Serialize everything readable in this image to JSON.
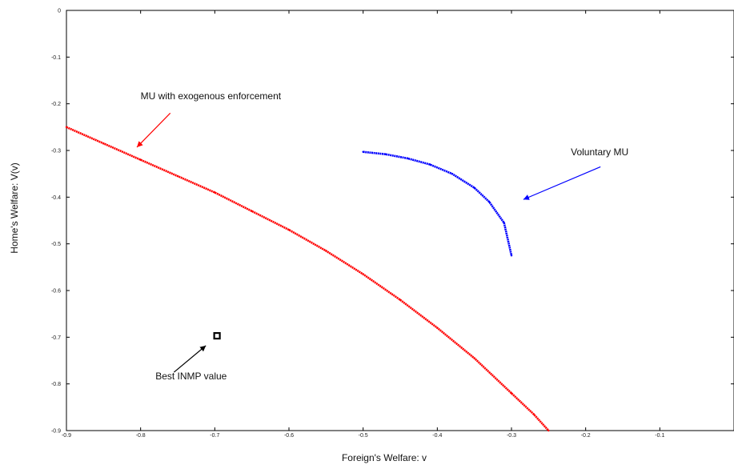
{
  "chart_data": {
    "type": "scatter",
    "title": "",
    "xlabel": "Foreign's Welfare: v",
    "ylabel": "Home's Welfare: V(v)",
    "xlim": [
      -0.9,
      0.0
    ],
    "ylim": [
      -0.9,
      0.0
    ],
    "xticks": [
      -0.9,
      -0.8,
      -0.7,
      -0.6,
      -0.5,
      -0.4,
      -0.3,
      -0.2,
      -0.1
    ],
    "xtick_labels": [
      "-0.9",
      "-0.8",
      "-0.7",
      "-0.6",
      "-0.5",
      "-0.4",
      "-0.3",
      "-0.2",
      "-0.1"
    ],
    "yticks": [
      0,
      -0.1,
      -0.2,
      -0.3,
      -0.4,
      -0.5,
      -0.6,
      -0.7,
      -0.8,
      -0.9
    ],
    "ytick_labels": [
      "0",
      "-0.1",
      "-0.2",
      "-0.3",
      "-0.4",
      "-0.5",
      "-0.6",
      "-0.7",
      "-0.8",
      "-0.9"
    ],
    "grid": false,
    "series": [
      {
        "color": "#ff0000",
        "x": [
          -0.9,
          -0.85,
          -0.8,
          -0.75,
          -0.7,
          -0.65,
          -0.6,
          -0.55,
          -0.5,
          -0.45,
          -0.4,
          -0.35,
          -0.3,
          -0.27,
          -0.25
        ],
        "y": [
          -0.25,
          -0.285,
          -0.32,
          -0.355,
          -0.39,
          -0.43,
          -0.47,
          -0.515,
          -0.565,
          -0.62,
          -0.68,
          -0.745,
          -0.82,
          -0.865,
          -0.9
        ]
      },
      {
        "color": "#0000ff",
        "x": [
          -0.5,
          -0.47,
          -0.44,
          -0.41,
          -0.38,
          -0.35,
          -0.33,
          -0.31,
          -0.3
        ],
        "y": [
          -0.303,
          -0.308,
          -0.317,
          -0.33,
          -0.35,
          -0.38,
          -0.41,
          -0.455,
          -0.525
        ]
      },
      {
        "color": "#000000",
        "x": [
          -0.697
        ],
        "y": [
          -0.697
        ]
      }
    ],
    "annotations": [
      {
        "text": "MU with exogenous enforcement",
        "x": -0.8,
        "y": -0.19
      },
      {
        "text": "Voluntary MU",
        "x": -0.22,
        "y": -0.31
      },
      {
        "text": "Best  INMP value",
        "x": -0.78,
        "y": -0.79
      }
    ]
  }
}
